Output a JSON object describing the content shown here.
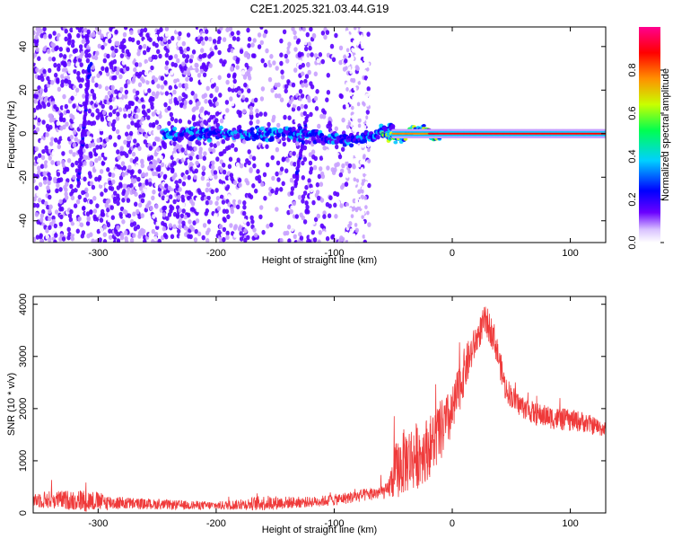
{
  "title": "C2E1.2025.321.03.44.G19",
  "chart_data": [
    {
      "type": "heatmap",
      "xlabel": "Height of straight line (km)",
      "ylabel": "Frequency (Hz)",
      "xlim": [
        -355,
        130
      ],
      "ylim": [
        -50,
        49
      ],
      "xticks": [
        -300,
        -200,
        -100,
        0,
        100
      ],
      "yticks": [
        -40,
        -20,
        0,
        20,
        40
      ],
      "colorbar": {
        "label": "Normalized spectral amplitude",
        "range": [
          0,
          1
        ],
        "ticks": [
          0.0,
          0.2,
          0.4,
          0.6,
          0.8
        ],
        "colors": [
          "#ffffff",
          "#c8a0ff",
          "#5a00ff",
          "#0000ff",
          "#00c8ff",
          "#00ff50",
          "#d4ff00",
          "#ff8000",
          "#ff0000",
          "#ff0080"
        ]
      },
      "features": {
        "noise_region_x": [
          -355,
          -70
        ],
        "carrier_line": {
          "x_start": -50,
          "x_end": 130,
          "frequency": 0
        },
        "band_center": 0,
        "streaks": [
          {
            "x": -312,
            "y_top": 32,
            "y_bottom": -24
          },
          {
            "x": -128,
            "y_top": 8,
            "y_bottom": -24
          }
        ]
      }
    },
    {
      "type": "line",
      "xlabel": "Height of straight line (km)",
      "ylabel": "SNR (10 * v/v)",
      "xlim": [
        -355,
        130
      ],
      "ylim": [
        0,
        4150
      ],
      "xticks": [
        -300,
        -200,
        -100,
        0,
        100
      ],
      "yticks": [
        0,
        1000,
        2000,
        3000,
        4000
      ],
      "color": "#ef3a3a",
      "envelope": {
        "x": [
          -355,
          -330,
          -310,
          -290,
          -260,
          -230,
          -200,
          -180,
          -160,
          -140,
          -120,
          -100,
          -80,
          -65,
          -55,
          -48,
          -40,
          -30,
          -20,
          -10,
          0,
          10,
          20,
          28,
          35,
          45,
          55,
          70,
          90,
          110,
          130
        ],
        "mean": [
          260,
          250,
          240,
          200,
          170,
          150,
          140,
          160,
          190,
          200,
          210,
          250,
          320,
          380,
          420,
          800,
          1000,
          1100,
          1250,
          1550,
          1900,
          2700,
          3300,
          3700,
          3400,
          2400,
          2100,
          1900,
          1800,
          1750,
          1600
        ],
        "spread": [
          160,
          180,
          220,
          140,
          100,
          90,
          80,
          100,
          150,
          120,
          100,
          110,
          120,
          130,
          150,
          550,
          650,
          650,
          600,
          600,
          500,
          450,
          300,
          300,
          300,
          250,
          220,
          220,
          220,
          200,
          150
        ]
      }
    }
  ]
}
